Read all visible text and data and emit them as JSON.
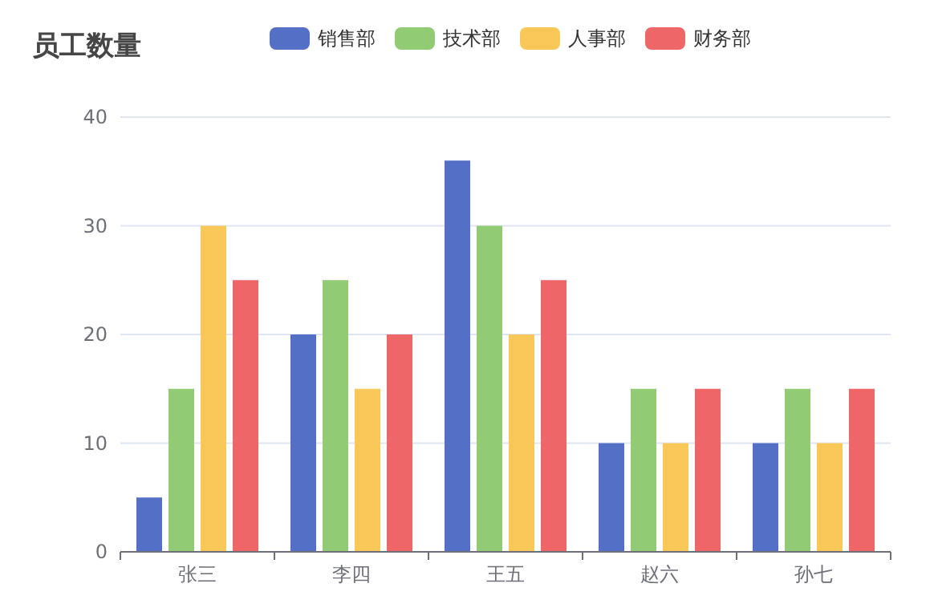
{
  "chart_data": {
    "type": "bar",
    "title": "员工数量",
    "categories": [
      "张三",
      "李四",
      "王五",
      "赵六",
      "孙七"
    ],
    "series": [
      {
        "name": "销售部",
        "color": "#5470c6",
        "values": [
          5,
          20,
          36,
          10,
          10
        ]
      },
      {
        "name": "技术部",
        "color": "#91cc75",
        "values": [
          15,
          25,
          30,
          15,
          15
        ]
      },
      {
        "name": "人事部",
        "color": "#fac858",
        "values": [
          30,
          15,
          20,
          10,
          10
        ]
      },
      {
        "name": "财务部",
        "color": "#ee6666",
        "values": [
          25,
          20,
          25,
          15,
          15
        ]
      }
    ],
    "ylim": [
      0,
      40
    ],
    "yticks": [
      0,
      10,
      20,
      30,
      40
    ],
    "grid": "y",
    "legend": "top"
  }
}
